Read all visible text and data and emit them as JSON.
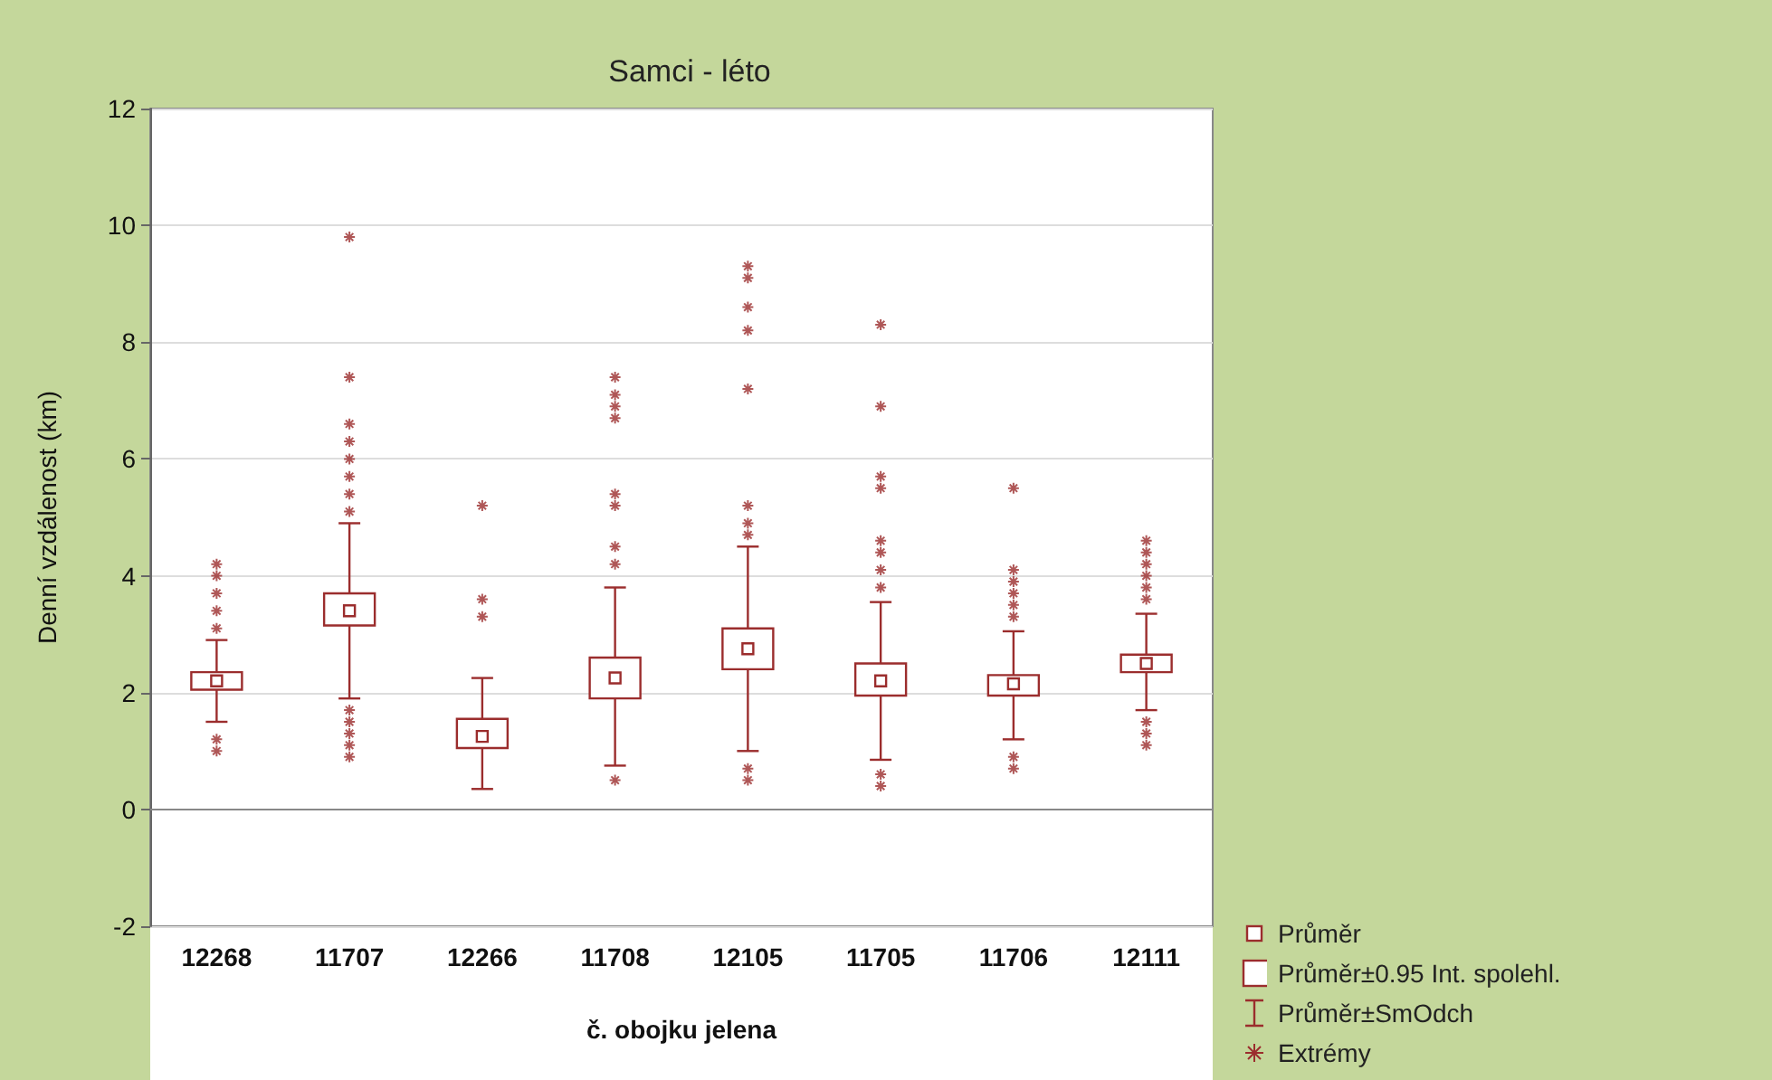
{
  "chart_data": {
    "type": "box",
    "title": "Samci - léto",
    "xlabel": "č. obojku jelena",
    "ylabel": "Denní vzdálenost (km)",
    "categories": [
      "12268",
      "11707",
      "12266",
      "11708",
      "12105",
      "11705",
      "11706",
      "12111"
    ],
    "ylim": [
      -2,
      12
    ],
    "yticks": [
      -2,
      0,
      2,
      4,
      6,
      8,
      10,
      12
    ],
    "grid": "y",
    "annotations": [
      "Průměr",
      "Průměr±0.95 Int. spolehl.",
      "Průměr±SmOdch",
      "Extrémy"
    ],
    "series": [
      {
        "color": "#9b2d2d",
        "boxes": [
          {
            "low": 1.5,
            "q1": 2.05,
            "median": 2.2,
            "q3": 2.35,
            "high": 2.9,
            "outliers": [
              1.0,
              1.2,
              3.1,
              3.4,
              3.7,
              4.0,
              4.2
            ]
          },
          {
            "low": 1.9,
            "q1": 3.15,
            "median": 3.4,
            "q3": 3.7,
            "high": 4.9,
            "outliers": [
              0.9,
              1.1,
              1.3,
              1.5,
              1.7,
              5.1,
              5.4,
              5.7,
              6.0,
              6.3,
              6.6,
              7.4,
              9.8
            ]
          },
          {
            "low": 0.35,
            "q1": 1.05,
            "median": 1.25,
            "q3": 1.55,
            "high": 2.25,
            "outliers": [
              3.3,
              3.6,
              5.2
            ]
          },
          {
            "low": 0.75,
            "q1": 1.9,
            "median": 2.25,
            "q3": 2.6,
            "high": 3.8,
            "outliers": [
              0.5,
              4.2,
              4.5,
              5.2,
              5.4,
              6.7,
              6.9,
              7.1,
              7.4
            ]
          },
          {
            "low": 1.0,
            "q1": 2.4,
            "median": 2.75,
            "q3": 3.1,
            "high": 4.5,
            "outliers": [
              0.5,
              0.7,
              4.7,
              4.9,
              5.2,
              7.2,
              8.2,
              8.6,
              9.1,
              9.3
            ]
          },
          {
            "low": 0.85,
            "q1": 1.95,
            "median": 2.2,
            "q3": 2.5,
            "high": 3.55,
            "outliers": [
              0.4,
              0.6,
              3.8,
              4.1,
              4.4,
              4.6,
              5.5,
              5.7,
              6.9,
              8.3
            ]
          },
          {
            "low": 1.2,
            "q1": 1.95,
            "median": 2.15,
            "q3": 2.3,
            "high": 3.05,
            "outliers": [
              0.7,
              0.9,
              3.3,
              3.5,
              3.7,
              3.9,
              4.1,
              5.5
            ]
          },
          {
            "low": 1.7,
            "q1": 2.35,
            "median": 2.5,
            "q3": 2.65,
            "high": 3.35,
            "outliers": [
              1.1,
              1.3,
              1.5,
              3.6,
              3.8,
              4.0,
              4.2,
              4.4,
              4.6
            ]
          }
        ]
      }
    ]
  }
}
